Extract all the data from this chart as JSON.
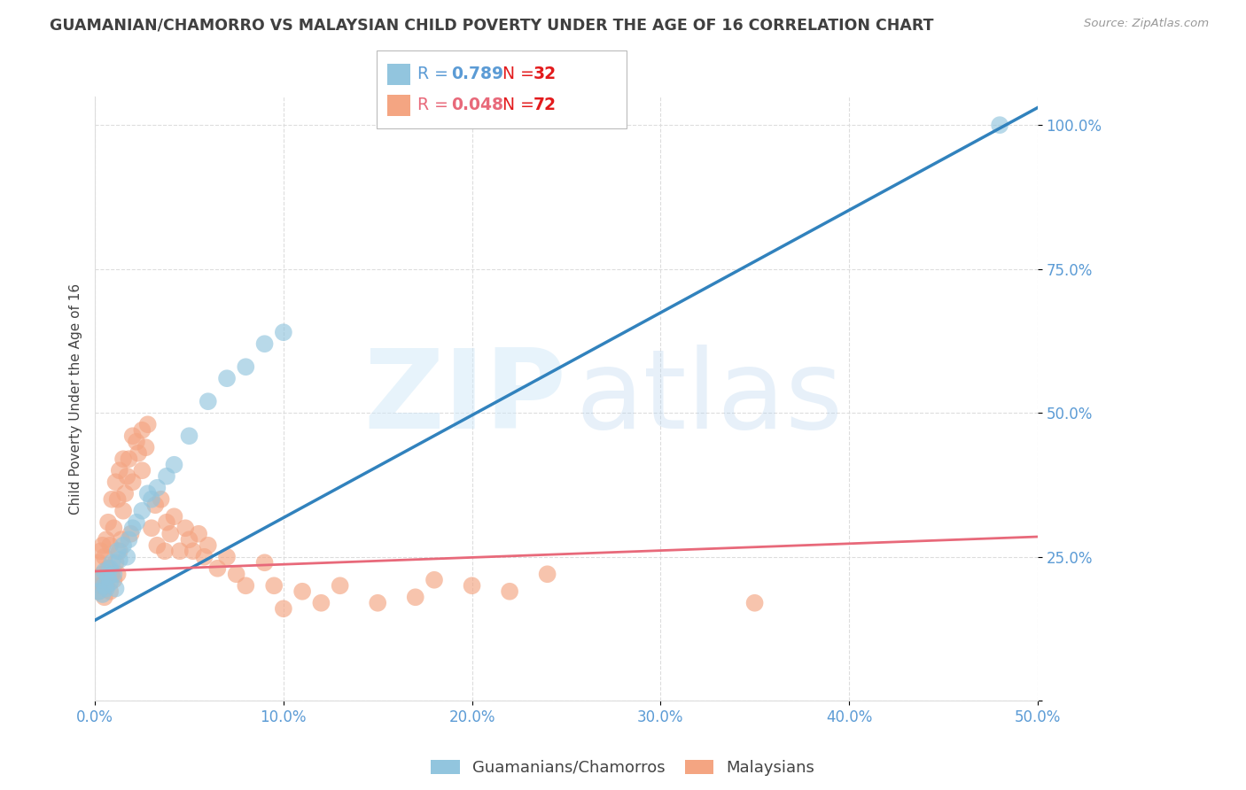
{
  "title": "GUAMANIAN/CHAMORRO VS MALAYSIAN CHILD POVERTY UNDER THE AGE OF 16 CORRELATION CHART",
  "source": "Source: ZipAtlas.com",
  "ylabel": "Child Poverty Under the Age of 16",
  "blue_R": 0.789,
  "blue_N": 32,
  "pink_R": 0.048,
  "pink_N": 72,
  "blue_color": "#92c5de",
  "pink_color": "#f4a582",
  "blue_line_color": "#3182bd",
  "pink_line_color": "#e8697a",
  "axis_tick_color": "#5b9bd5",
  "title_color": "#404040",
  "source_color": "#999999",
  "grid_color": "#dddddd",
  "background_color": "#ffffff",
  "xlim": [
    0.0,
    0.5
  ],
  "ylim": [
    0.0,
    1.05
  ],
  "blue_line_x": [
    0.0,
    0.5
  ],
  "blue_line_y": [
    0.14,
    1.03
  ],
  "pink_line_x": [
    0.0,
    0.5
  ],
  "pink_line_y": [
    0.225,
    0.285
  ],
  "blue_scatter_x": [
    0.002,
    0.003,
    0.004,
    0.005,
    0.005,
    0.006,
    0.007,
    0.008,
    0.008,
    0.009,
    0.01,
    0.011,
    0.012,
    0.013,
    0.015,
    0.017,
    0.018,
    0.02,
    0.022,
    0.025,
    0.028,
    0.03,
    0.033,
    0.038,
    0.042,
    0.05,
    0.06,
    0.07,
    0.08,
    0.09,
    0.48,
    0.1
  ],
  "blue_scatter_y": [
    0.19,
    0.21,
    0.185,
    0.2,
    0.225,
    0.195,
    0.215,
    0.23,
    0.205,
    0.24,
    0.22,
    0.195,
    0.26,
    0.245,
    0.27,
    0.25,
    0.28,
    0.3,
    0.31,
    0.33,
    0.36,
    0.35,
    0.37,
    0.39,
    0.41,
    0.46,
    0.52,
    0.56,
    0.58,
    0.62,
    1.0,
    0.64
  ],
  "pink_scatter_x": [
    0.001,
    0.002,
    0.002,
    0.003,
    0.003,
    0.004,
    0.004,
    0.005,
    0.005,
    0.006,
    0.006,
    0.007,
    0.007,
    0.008,
    0.008,
    0.009,
    0.009,
    0.01,
    0.01,
    0.011,
    0.011,
    0.012,
    0.012,
    0.013,
    0.013,
    0.014,
    0.015,
    0.015,
    0.016,
    0.017,
    0.018,
    0.019,
    0.02,
    0.02,
    0.022,
    0.023,
    0.025,
    0.025,
    0.027,
    0.028,
    0.03,
    0.032,
    0.033,
    0.035,
    0.037,
    0.038,
    0.04,
    0.042,
    0.045,
    0.048,
    0.05,
    0.052,
    0.055,
    0.058,
    0.06,
    0.065,
    0.07,
    0.075,
    0.08,
    0.09,
    0.095,
    0.1,
    0.11,
    0.12,
    0.13,
    0.15,
    0.17,
    0.18,
    0.2,
    0.22,
    0.24,
    0.35
  ],
  "pink_scatter_y": [
    0.21,
    0.19,
    0.24,
    0.2,
    0.26,
    0.22,
    0.27,
    0.18,
    0.25,
    0.2,
    0.28,
    0.23,
    0.31,
    0.19,
    0.27,
    0.22,
    0.35,
    0.21,
    0.3,
    0.24,
    0.38,
    0.22,
    0.35,
    0.26,
    0.4,
    0.28,
    0.33,
    0.42,
    0.36,
    0.39,
    0.42,
    0.29,
    0.46,
    0.38,
    0.45,
    0.43,
    0.47,
    0.4,
    0.44,
    0.48,
    0.3,
    0.34,
    0.27,
    0.35,
    0.26,
    0.31,
    0.29,
    0.32,
    0.26,
    0.3,
    0.28,
    0.26,
    0.29,
    0.25,
    0.27,
    0.23,
    0.25,
    0.22,
    0.2,
    0.24,
    0.2,
    0.16,
    0.19,
    0.17,
    0.2,
    0.17,
    0.18,
    0.21,
    0.2,
    0.19,
    0.22,
    0.17
  ]
}
